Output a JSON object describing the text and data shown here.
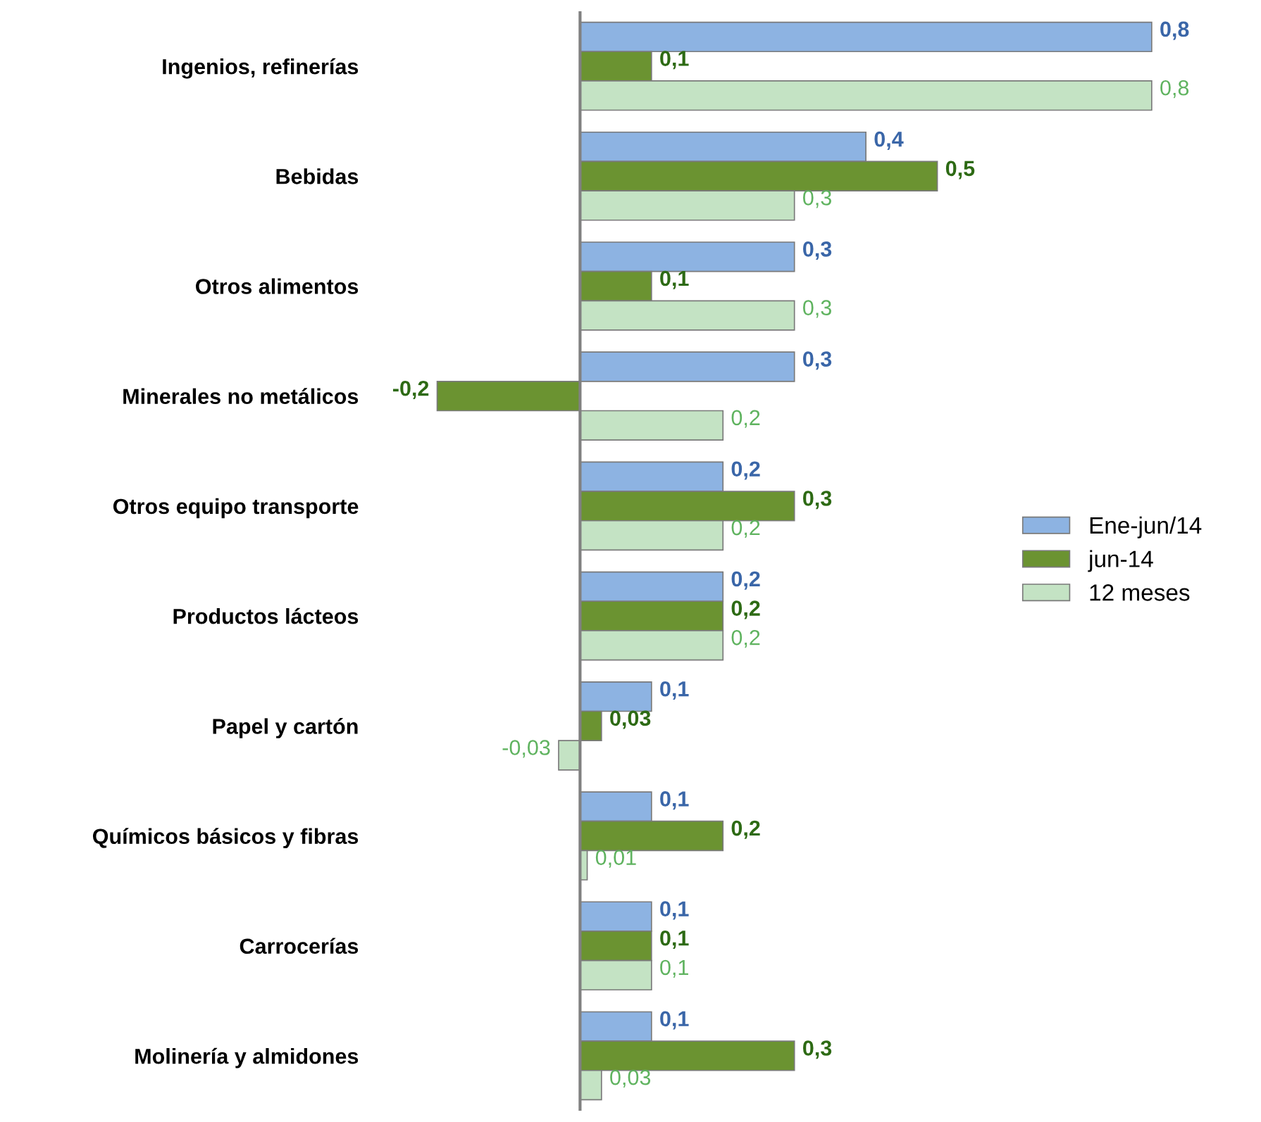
{
  "chart_data": {
    "type": "bar",
    "orientation": "horizontal",
    "categories": [
      "Ingenios, refinerías",
      "Bebidas",
      "Otros alimentos",
      "Minerales no metálicos",
      "Otros equipo transporte",
      "Productos lácteos",
      "Papel y cartón",
      "Químicos básicos y fibras",
      "Carrocerías",
      "Molinería y almidones"
    ],
    "series": [
      {
        "name": "Ene-jun/14",
        "color": "#8db3e2",
        "values": [
          0.8,
          0.4,
          0.3,
          0.3,
          0.2,
          0.2,
          0.1,
          0.1,
          0.1,
          0.1
        ],
        "value_labels": [
          "0,8",
          "0,4",
          "0,3",
          "0,3",
          "0,2",
          "0,2",
          "0,1",
          "0,1",
          "0,1",
          "0,1"
        ]
      },
      {
        "name": "jun-14",
        "color": "#6b9331",
        "values": [
          0.1,
          0.5,
          0.1,
          -0.2,
          0.3,
          0.2,
          0.03,
          0.2,
          0.1,
          0.3
        ],
        "value_labels": [
          "0,1",
          "0,5",
          "0,1",
          "-0,2",
          "0,3",
          "0,2",
          "0,03",
          "0,2",
          "0,1",
          "0,3"
        ]
      },
      {
        "name": "12 meses",
        "color": "#c4e3c4",
        "values": [
          0.8,
          0.3,
          0.3,
          0.2,
          0.2,
          0.2,
          -0.03,
          0.01,
          0.1,
          0.03
        ],
        "value_labels": [
          "0,8",
          "0,3",
          "0,3",
          "0,2",
          "0,2",
          "0,2",
          "-0,03",
          "0,01",
          "0,1",
          "0,03"
        ]
      }
    ],
    "grid": false,
    "legend": "right"
  }
}
